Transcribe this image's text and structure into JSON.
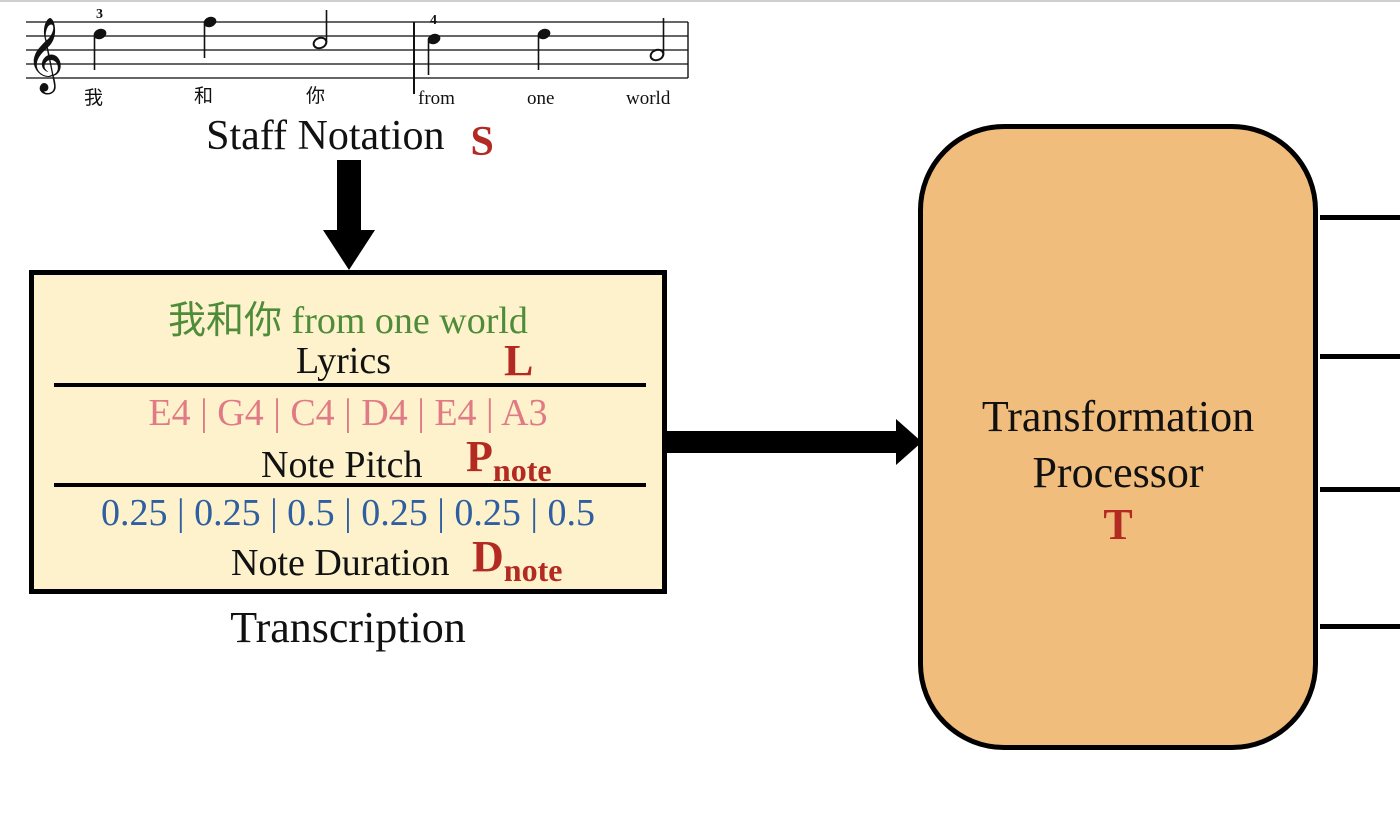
{
  "staff": {
    "title": "Staff Notation",
    "symbol": "S",
    "measure_numbers": [
      "3",
      "4"
    ],
    "lyrics": [
      "我",
      "和",
      "你",
      "from",
      "one",
      "world"
    ]
  },
  "transcription": {
    "lyrics_value": "我和你 from one world",
    "lyrics_label": "Lyrics",
    "lyrics_symbol": "L",
    "pitch_value": "E4 | G4 | C4 | D4 | E4 | A3",
    "pitch_label": "Note Pitch",
    "pitch_symbol": "P",
    "pitch_symbol_sub": "note",
    "duration_value": "0.25 | 0.25 | 0.5 | 0.25 | 0.25 | 0.5",
    "duration_label": "Note Duration",
    "duration_symbol": "D",
    "duration_symbol_sub": "note",
    "title": "Transcription"
  },
  "processor": {
    "line1": "Transformation",
    "line2": "Processor",
    "symbol": "T"
  },
  "colors": {
    "symbol": "#b22a22",
    "lyrics": "#4f8c3a",
    "pitch": "#e07a84",
    "duration": "#2f5fa0",
    "transcription_fill": "#fdf2cc",
    "processor_fill": "#f0bd7c"
  }
}
